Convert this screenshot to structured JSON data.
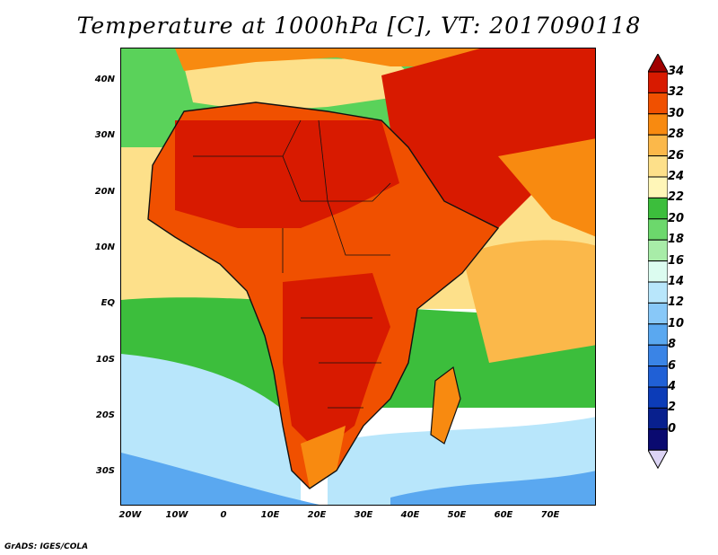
{
  "title": "Temperature at 1000hPa [C], VT: 2017090118",
  "footer": "GrADS: IGES/COLA",
  "lat_labels": [
    "40N",
    "30N",
    "20N",
    "10N",
    "EQ",
    "10S",
    "20S",
    "30S"
  ],
  "lon_labels": [
    "20W",
    "10W",
    "0",
    "10E",
    "20E",
    "30E",
    "40E",
    "50E",
    "60E",
    "70E"
  ],
  "colorbar": {
    "labels": [
      "34",
      "32",
      "30",
      "28",
      "26",
      "24",
      "22",
      "20",
      "18",
      "16",
      "14",
      "12",
      "10",
      "8",
      "6",
      "4",
      "2",
      "0"
    ],
    "colors": [
      "#a00000",
      "#d81a00",
      "#f05000",
      "#f88a10",
      "#fbb84a",
      "#fde08a",
      "#fff6b8",
      "#3cbe3c",
      "#6cd86c",
      "#a8eca8",
      "#dcfcf0",
      "#b8e6fb",
      "#88c8f8",
      "#5aa8f0",
      "#3a84e6",
      "#2060d6",
      "#0c3cb8",
      "#08208e",
      "#0a0a70",
      "#dcd4f4"
    ]
  },
  "map": {
    "colors": {
      "ocean_north": "#5ad25a",
      "ocean_tropical": "#fde08a",
      "ocean_south_green": "#3cbe3c",
      "ocean_south_cool": "#b8e6fb",
      "ocean_far_south": "#5aa8f0",
      "land_hot": "#d81a00",
      "land_warm": "#f05000",
      "land_mild": "#f88a10",
      "land_temperate": "#fbb84a",
      "mediterranean": "#fde08a",
      "border": "#111111"
    }
  }
}
